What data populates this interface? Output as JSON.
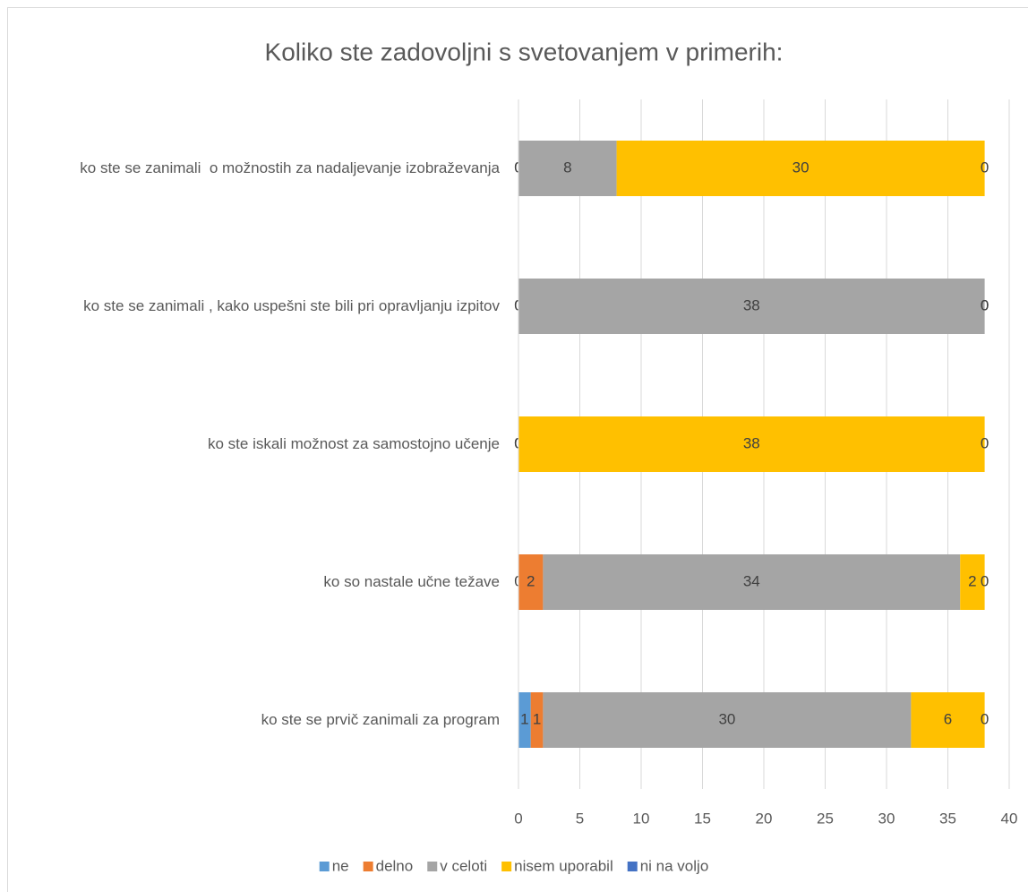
{
  "chart_data": {
    "type": "bar",
    "orientation": "horizontal",
    "stacked": true,
    "title": "Koliko ste zadovoljni s svetovanjem v primerih:",
    "categories": [
      "ko ste se zanimali  o možnostih za nadaljevanje izobraževanja",
      "ko ste se zanimali , kako uspešni ste bili pri opravljanju izpitov",
      "ko ste iskali možnost za samostojno učenje",
      "ko so nastale učne težave",
      "ko ste se prvič zanimali za program"
    ],
    "series": [
      {
        "name": "ne",
        "color": "#5b9bd5",
        "values": [
          0,
          0,
          0,
          0,
          1
        ]
      },
      {
        "name": "delno",
        "color": "#ed7d31",
        "values": [
          0,
          0,
          0,
          2,
          1
        ]
      },
      {
        "name": "v celoti",
        "color": "#a5a5a5",
        "values": [
          8,
          38,
          0,
          34,
          30
        ]
      },
      {
        "name": "nisem uporabil",
        "color": "#ffc000",
        "values": [
          30,
          0,
          38,
          2,
          6
        ]
      },
      {
        "name": "ni na voljo",
        "color": "#4472c4",
        "values": [
          0,
          0,
          0,
          0,
          0
        ]
      }
    ],
    "xlim": [
      0,
      40
    ],
    "xticks": [
      0,
      5,
      10,
      15,
      20,
      25,
      30,
      35,
      40
    ],
    "grid": true,
    "legend": "bottom"
  }
}
